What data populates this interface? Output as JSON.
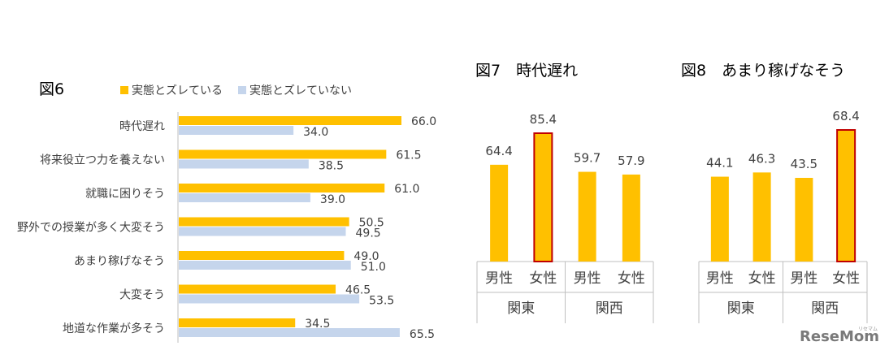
{
  "chart_data": [
    {
      "type": "bar",
      "orientation": "horizontal",
      "title": "図6",
      "categories": [
        "時代遅れ",
        "将来役立つ力を養えない",
        "就職に困りそう",
        "野外での授業が多く大変そう",
        "あまり稼げなそう",
        "大変そう",
        "地道な作業が多そう"
      ],
      "series": [
        {
          "name": "実態とズレている",
          "values": [
            66.0,
            61.5,
            61.0,
            50.5,
            49.0,
            46.5,
            34.5
          ],
          "value_labels": [
            "66.0",
            "61.5",
            "61.0",
            "50.5",
            "49.0",
            "46.5",
            "34.5"
          ],
          "color": "#FFC000"
        },
        {
          "name": "実態とズレていない",
          "values": [
            34.0,
            38.5,
            39.0,
            49.5,
            51.0,
            53.5,
            65.5
          ],
          "value_labels": [
            "34.0",
            "38.5",
            "39.0",
            "49.5",
            "51.0",
            "53.5",
            "65.5"
          ],
          "color": "#C5D5EC"
        }
      ],
      "legend_position": "top",
      "xlim": [
        0,
        100
      ],
      "grid": false
    },
    {
      "type": "bar",
      "title": "図7　時代遅れ",
      "categories": [
        "男性",
        "女性",
        "男性",
        "女性"
      ],
      "groups": [
        "関東",
        "関西"
      ],
      "values": [
        64.4,
        85.4,
        59.7,
        57.9
      ],
      "value_labels": [
        "64.4",
        "85.4",
        "59.7",
        "57.9"
      ],
      "highlighted_index": 1,
      "color": "#FFC000",
      "highlight_border": "#C00000",
      "ylim": [
        0,
        100
      ],
      "grid": false
    },
    {
      "type": "bar",
      "title": "図8　あまり稼げなそう",
      "categories": [
        "男性",
        "女性",
        "男性",
        "女性"
      ],
      "groups": [
        "関東",
        "関西"
      ],
      "values": [
        44.1,
        46.3,
        43.5,
        68.4
      ],
      "value_labels": [
        "44.1",
        "46.3",
        "43.5",
        "68.4"
      ],
      "highlighted_index": 3,
      "color": "#FFC000",
      "highlight_border": "#C00000",
      "ylim": [
        0,
        80
      ],
      "grid": false
    }
  ],
  "watermark": {
    "text": "ReseMom",
    "small": "リセマム"
  }
}
